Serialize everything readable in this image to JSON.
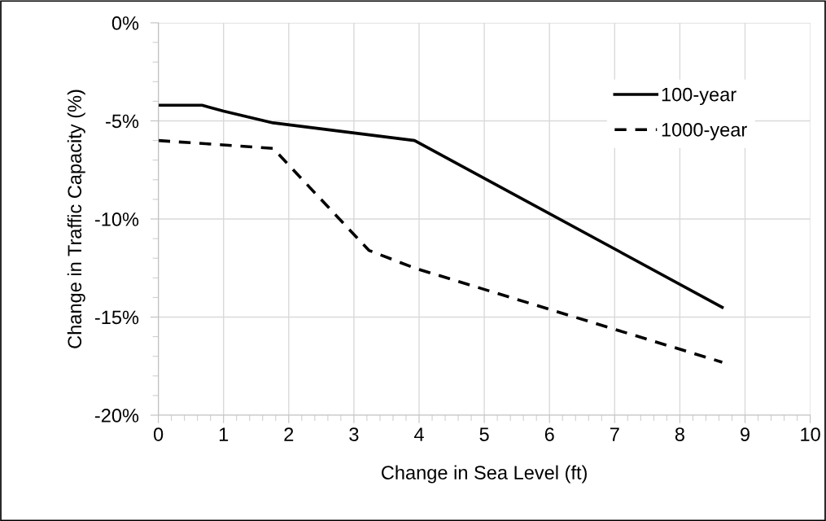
{
  "chart_data": {
    "type": "line",
    "xlabel": "Change in Sea Level (ft)",
    "ylabel": "Change in Traffic Capacity (%)",
    "series": [
      {
        "name": "100-year",
        "color": "#000000",
        "line_style": "solid",
        "x": [
          0,
          0.67,
          1.0,
          1.76,
          3.93,
          8.65
        ],
        "values": [
          -4.2,
          -4.2,
          -4.5,
          -5.1,
          -6.0,
          -14.5
        ]
      },
      {
        "name": "1000-year",
        "color": "#000000",
        "line_style": "dashed",
        "x": [
          0,
          1.76,
          3.23,
          3.93,
          8.65
        ],
        "values": [
          -6.0,
          -6.4,
          -11.6,
          -12.5,
          -17.3
        ]
      }
    ],
    "xlim": [
      0,
      10
    ],
    "xticks": [
      0,
      1,
      2,
      3,
      4,
      5,
      6,
      7,
      8,
      9,
      10
    ],
    "ylim": [
      -20,
      0
    ],
    "yticks": [
      {
        "value": -20,
        "label": "-20%"
      },
      {
        "value": -15,
        "label": "-15%"
      },
      {
        "value": -10,
        "label": "-10%"
      },
      {
        "value": -5,
        "label": "-5%"
      },
      {
        "value": 0,
        "label": "0%"
      }
    ],
    "grid": true,
    "legend": "top right",
    "marker": "none"
  }
}
